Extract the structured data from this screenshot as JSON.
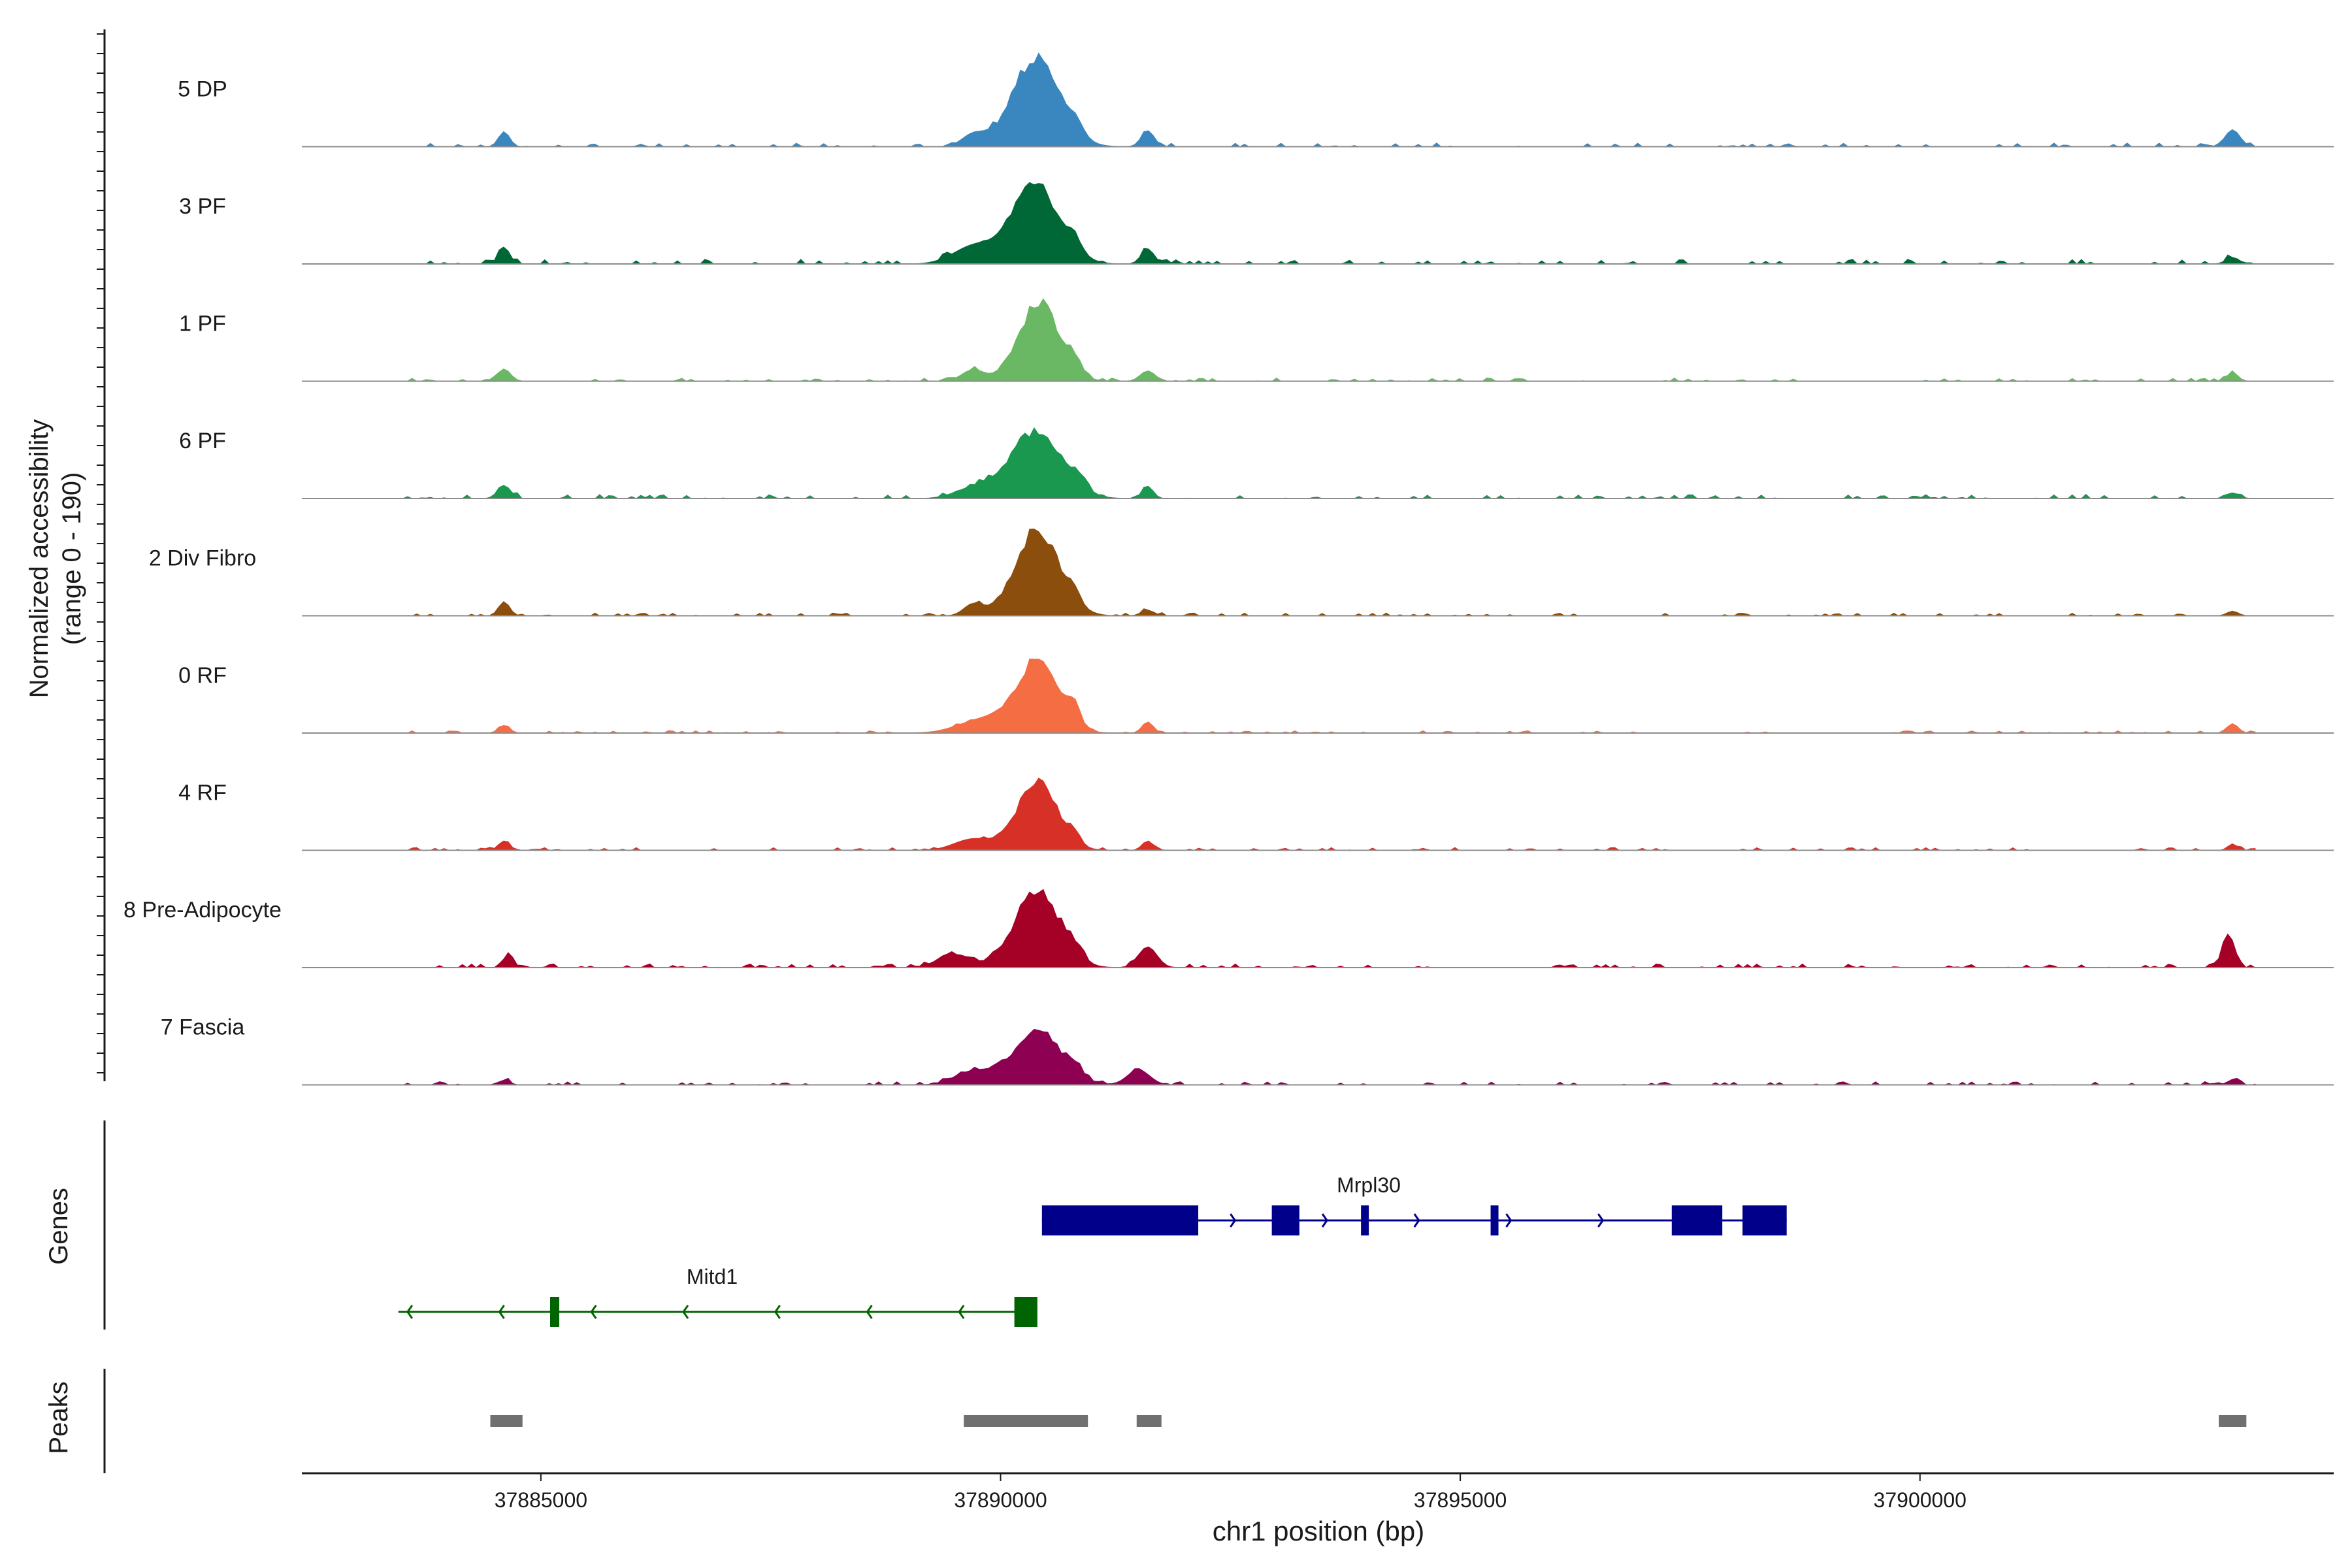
{
  "chart_data": {
    "type": "area",
    "title": "",
    "xlabel": "chr1 position (bp)",
    "ylabel_line1": "Normalized accessibility",
    "ylabel_line2": "(range 0 - 190)",
    "genes_label": "Genes",
    "peaks_label": "Peaks",
    "xlim": [
      37882400,
      37904500
    ],
    "x_ticks": [
      {
        "value": 37885000,
        "label": "37885000"
      },
      {
        "value": 37890000,
        "label": "37890000"
      },
      {
        "value": 37895000,
        "label": "37895000"
      },
      {
        "value": 37900000,
        "label": "37900000"
      }
    ],
    "tracks": [
      {
        "name": "5 DP",
        "color": "#3a87c0",
        "bg_max": 0.08,
        "peaks": [
          [
            37884600,
            60,
            0.16
          ],
          [
            37889700,
            120,
            0.12
          ],
          [
            37890380,
            260,
            1.0
          ],
          [
            37890800,
            80,
            0.14
          ],
          [
            37891600,
            70,
            0.17
          ],
          [
            37903400,
            80,
            0.18
          ]
        ]
      },
      {
        "name": "3 PF",
        "color": "#006837",
        "bg_max": 0.1,
        "peaks": [
          [
            37884600,
            60,
            0.18
          ],
          [
            37889700,
            220,
            0.18
          ],
          [
            37890380,
            260,
            0.9
          ],
          [
            37890800,
            70,
            0.14
          ],
          [
            37891600,
            70,
            0.16
          ],
          [
            37903400,
            70,
            0.07
          ]
        ]
      },
      {
        "name": "1 PF",
        "color": "#6ab863",
        "bg_max": 0.07,
        "peaks": [
          [
            37884600,
            70,
            0.13
          ],
          [
            37889700,
            120,
            0.12
          ],
          [
            37890420,
            220,
            0.9
          ],
          [
            37890800,
            70,
            0.15
          ],
          [
            37891600,
            80,
            0.11
          ],
          [
            37903400,
            60,
            0.09
          ]
        ]
      },
      {
        "name": "6 PF",
        "color": "#1a9850",
        "bg_max": 0.09,
        "peaks": [
          [
            37884600,
            70,
            0.14
          ],
          [
            37889700,
            200,
            0.1
          ],
          [
            37890380,
            280,
            0.78
          ],
          [
            37890850,
            70,
            0.14
          ],
          [
            37891600,
            60,
            0.13
          ],
          [
            37903400,
            70,
            0.06
          ]
        ]
      },
      {
        "name": "2 Div Fibro",
        "color": "#8b4e0d",
        "bg_max": 0.06,
        "peaks": [
          [
            37884600,
            60,
            0.15
          ],
          [
            37889700,
            100,
            0.12
          ],
          [
            37890400,
            240,
            0.98
          ],
          [
            37890800,
            60,
            0.12
          ],
          [
            37891600,
            70,
            0.06
          ],
          [
            37903400,
            60,
            0.05
          ]
        ]
      },
      {
        "name": "0 RF",
        "color": "#f46d43",
        "bg_max": 0.05,
        "peaks": [
          [
            37884600,
            60,
            0.08
          ],
          [
            37889800,
            260,
            0.14
          ],
          [
            37890400,
            230,
            0.82
          ],
          [
            37890800,
            60,
            0.22
          ],
          [
            37891600,
            60,
            0.12
          ],
          [
            37903400,
            60,
            0.1
          ]
        ]
      },
      {
        "name": "4 RF",
        "color": "#d73027",
        "bg_max": 0.06,
        "peaks": [
          [
            37884600,
            60,
            0.1
          ],
          [
            37889700,
            200,
            0.12
          ],
          [
            37890400,
            220,
            0.78
          ],
          [
            37890800,
            60,
            0.12
          ],
          [
            37891600,
            60,
            0.1
          ],
          [
            37903400,
            50,
            0.07
          ]
        ]
      },
      {
        "name": "8 Pre-Adipocyte",
        "color": "#a50026",
        "bg_max": 0.08,
        "peaks": [
          [
            37884650,
            50,
            0.16
          ],
          [
            37889500,
            180,
            0.14
          ],
          [
            37890400,
            240,
            0.9
          ],
          [
            37890800,
            80,
            0.13
          ],
          [
            37891600,
            100,
            0.22
          ],
          [
            37903350,
            60,
            0.4
          ]
        ]
      },
      {
        "name": "7 Fascia",
        "color": "#8e0152",
        "bg_max": 0.07,
        "peaks": [
          [
            37884600,
            60,
            0.05
          ],
          [
            37889700,
            200,
            0.14
          ],
          [
            37890400,
            260,
            0.62
          ],
          [
            37890800,
            70,
            0.12
          ],
          [
            37891500,
            120,
            0.16
          ],
          [
            37903400,
            60,
            0.05
          ]
        ]
      }
    ],
    "genes": [
      {
        "name": "Mrpl30",
        "strand": "+",
        "color": "#00008b",
        "start": 37890450,
        "end": 37898550,
        "exons": [
          [
            37890450,
            37892150
          ],
          [
            37892950,
            37893250
          ],
          [
            37893920,
            37894000
          ],
          [
            37895330,
            37895400
          ],
          [
            37897300,
            37897850
          ],
          [
            37898070,
            37898550
          ]
        ]
      },
      {
        "name": "Mitd1",
        "strand": "-",
        "color": "#006400",
        "start": 37883450,
        "end": 37890400,
        "exons": [
          [
            37885100,
            37885200
          ],
          [
            37890150,
            37890400
          ]
        ]
      }
    ],
    "peak_regions": [
      [
        37884450,
        37884800
      ],
      [
        37889600,
        37890950
      ],
      [
        37891480,
        37891750
      ],
      [
        37903250,
        37903550
      ]
    ]
  }
}
